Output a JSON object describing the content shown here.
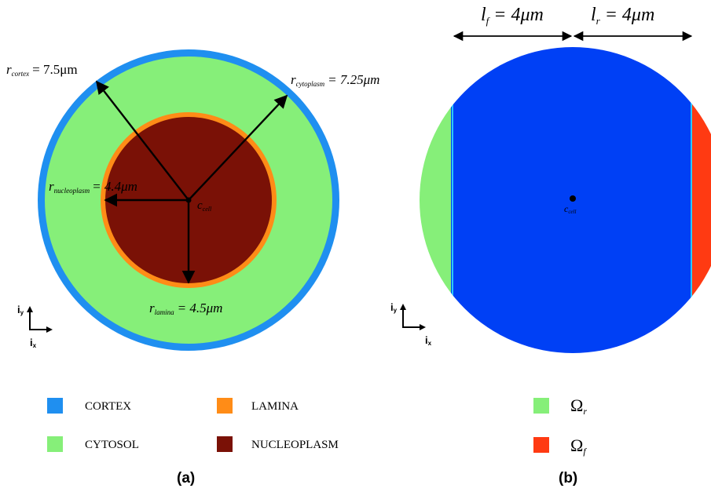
{
  "colors": {
    "cortex": "#1f8ff0",
    "cytosol": "#86ef79",
    "lamina": "#ff8c17",
    "nucleoplasm": "#7a1106",
    "bulk": "#0040f5",
    "omega_r": "#86ef79",
    "omega_f": "#ff3a12",
    "arrow": "#000000"
  },
  "panel_a": {
    "caption": "(a)",
    "labels": {
      "r_cortex_sym": "r",
      "r_cortex_sub": "cortex",
      "r_cortex_val": "= 7.5μm",
      "r_cyto_sym": "r",
      "r_cyto_sub": "cytoplasm",
      "r_cyto_val": "= 7.25μm",
      "r_nucleo_sym": "r",
      "r_nucleo_sub": "nucleoplasm",
      "r_nucleo_val": "= 4.4μm",
      "r_lamina_sym": "r",
      "r_lamina_sub": "lamina",
      "r_lamina_val": "= 4.5μm",
      "c_cell_sym": "c",
      "c_cell_sub": "cell"
    },
    "axes": {
      "x_sym": "i",
      "x_sub": "x",
      "y_sym": "i",
      "y_sub": "y"
    }
  },
  "panel_b": {
    "caption": "(b)",
    "lf_sym": "l",
    "lf_sub": "f",
    "lf_val": "= 4μm",
    "lr_sym": "l",
    "lr_sub": "r",
    "lr_val": "= 4μm",
    "c_cell_sym": "c",
    "c_cell_sub": "cell",
    "axes": {
      "x_sym": "i",
      "x_sub": "x",
      "y_sym": "i",
      "y_sub": "y"
    }
  },
  "legend": {
    "cortex": "CORTEX",
    "cytosol": "CYTOSOL",
    "lamina": "LAMINA",
    "nucleoplasm": "NUCLEOPLASM",
    "omega_r_sym": "Ω",
    "omega_r_sub": "r",
    "omega_f_sym": "Ω",
    "omega_f_sub": "f"
  }
}
